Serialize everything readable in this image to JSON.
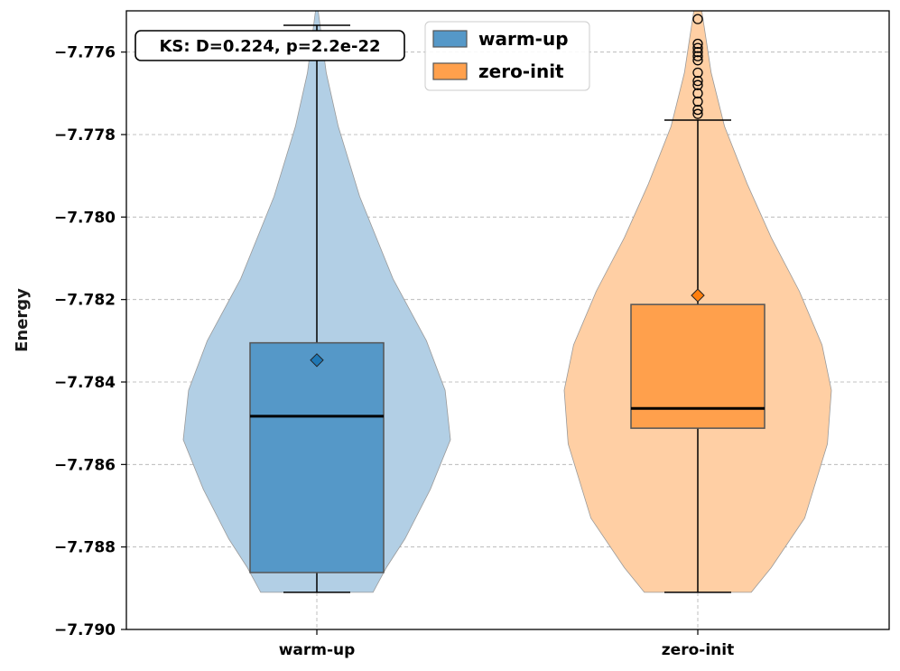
{
  "chart_data": {
    "type": "violin-box",
    "title": "",
    "xlabel": "",
    "ylabel": "Energy",
    "ylim": [
      -7.79,
      -7.775
    ],
    "yticks": [
      -7.79,
      -7.788,
      -7.786,
      -7.784,
      -7.782,
      -7.78,
      -7.778,
      -7.776
    ],
    "ytick_labels": [
      "−7.790",
      "−7.788",
      "−7.786",
      "−7.784",
      "−7.782",
      "−7.780",
      "−7.778",
      "−7.776"
    ],
    "grid": true,
    "categories": [
      "warm-up",
      "zero-init"
    ],
    "series": [
      {
        "name": "warm-up",
        "color": "#1f77b4",
        "violin_color": "#b2cfe5",
        "box_color": "#5598c8",
        "box": {
          "q1": -7.78862,
          "median": -7.78483,
          "q3": -7.78305,
          "mean": -7.78347,
          "whisker_low": -7.7891,
          "whisker_high": -7.77535
        },
        "outliers": [],
        "violin_profile": [
          [
            -7.7891,
            0.42
          ],
          [
            -7.7885,
            0.52
          ],
          [
            -7.7878,
            0.66
          ],
          [
            -7.7866,
            0.85
          ],
          [
            -7.7854,
            1.0
          ],
          [
            -7.7842,
            0.96
          ],
          [
            -7.783,
            0.82
          ],
          [
            -7.7815,
            0.57
          ],
          [
            -7.7795,
            0.32
          ],
          [
            -7.7778,
            0.16
          ],
          [
            -7.7765,
            0.07
          ],
          [
            -7.775,
            0.01
          ]
        ]
      },
      {
        "name": "zero-init",
        "color": "#ff7f0e",
        "violin_color": "#ffcfa4",
        "box_color": "#ffa04c",
        "box": {
          "q1": -7.78512,
          "median": -7.78464,
          "q3": -7.78212,
          "mean": -7.7819,
          "whisker_low": -7.7891,
          "whisker_high": -7.77765
        },
        "outliers": [
          -7.7752,
          -7.7758,
          -7.7759,
          -7.776,
          -7.7761,
          -7.7762,
          -7.7765,
          -7.7767,
          -7.7768,
          -7.777,
          -7.7772,
          -7.7774,
          -7.7775
        ],
        "violin_profile": [
          [
            -7.7891,
            0.4
          ],
          [
            -7.7885,
            0.55
          ],
          [
            -7.7873,
            0.8
          ],
          [
            -7.7855,
            0.97
          ],
          [
            -7.7842,
            1.0
          ],
          [
            -7.7831,
            0.93
          ],
          [
            -7.7818,
            0.76
          ],
          [
            -7.7805,
            0.55
          ],
          [
            -7.7792,
            0.37
          ],
          [
            -7.7778,
            0.2
          ],
          [
            -7.7765,
            0.1
          ],
          [
            -7.775,
            0.03
          ]
        ]
      }
    ],
    "legend": {
      "position": "top-center",
      "entries": [
        "warm-up",
        "zero-init"
      ]
    },
    "annotations": [
      {
        "text": "KS: D=0.224, p=2.2e-22",
        "position": "top-left"
      }
    ]
  }
}
